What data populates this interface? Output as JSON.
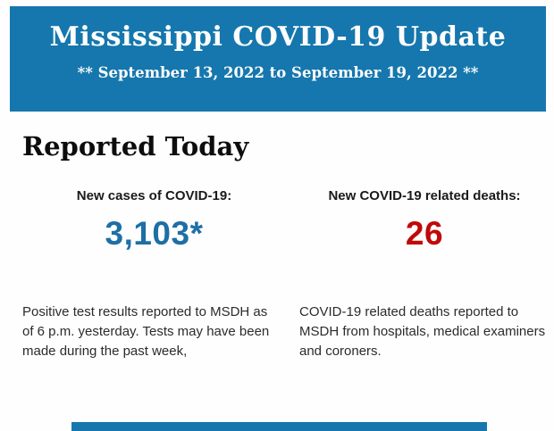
{
  "banner": {
    "title": "Mississippi COVID-19 Update",
    "subtitle": "** September 13, 2022 to September 19, 2022 **"
  },
  "main": {
    "heading": "Reported Today",
    "stats": [
      {
        "label": "New cases of COVID-19:",
        "value": "3,103*",
        "description": "Positive test results reported to MSDH as of 6 p.m. yesterday. Tests may have been made during the past week,"
      },
      {
        "label": "New COVID-19 related deaths:",
        "value": "26",
        "description": "COVID-19 related deaths reported to MSDH from hospitals, medical examiners and coroners."
      }
    ]
  },
  "colors": {
    "banner_blue": "#1577AD",
    "cases_value_blue": "#1D6FA5",
    "deaths_value_red": "#C00909"
  }
}
